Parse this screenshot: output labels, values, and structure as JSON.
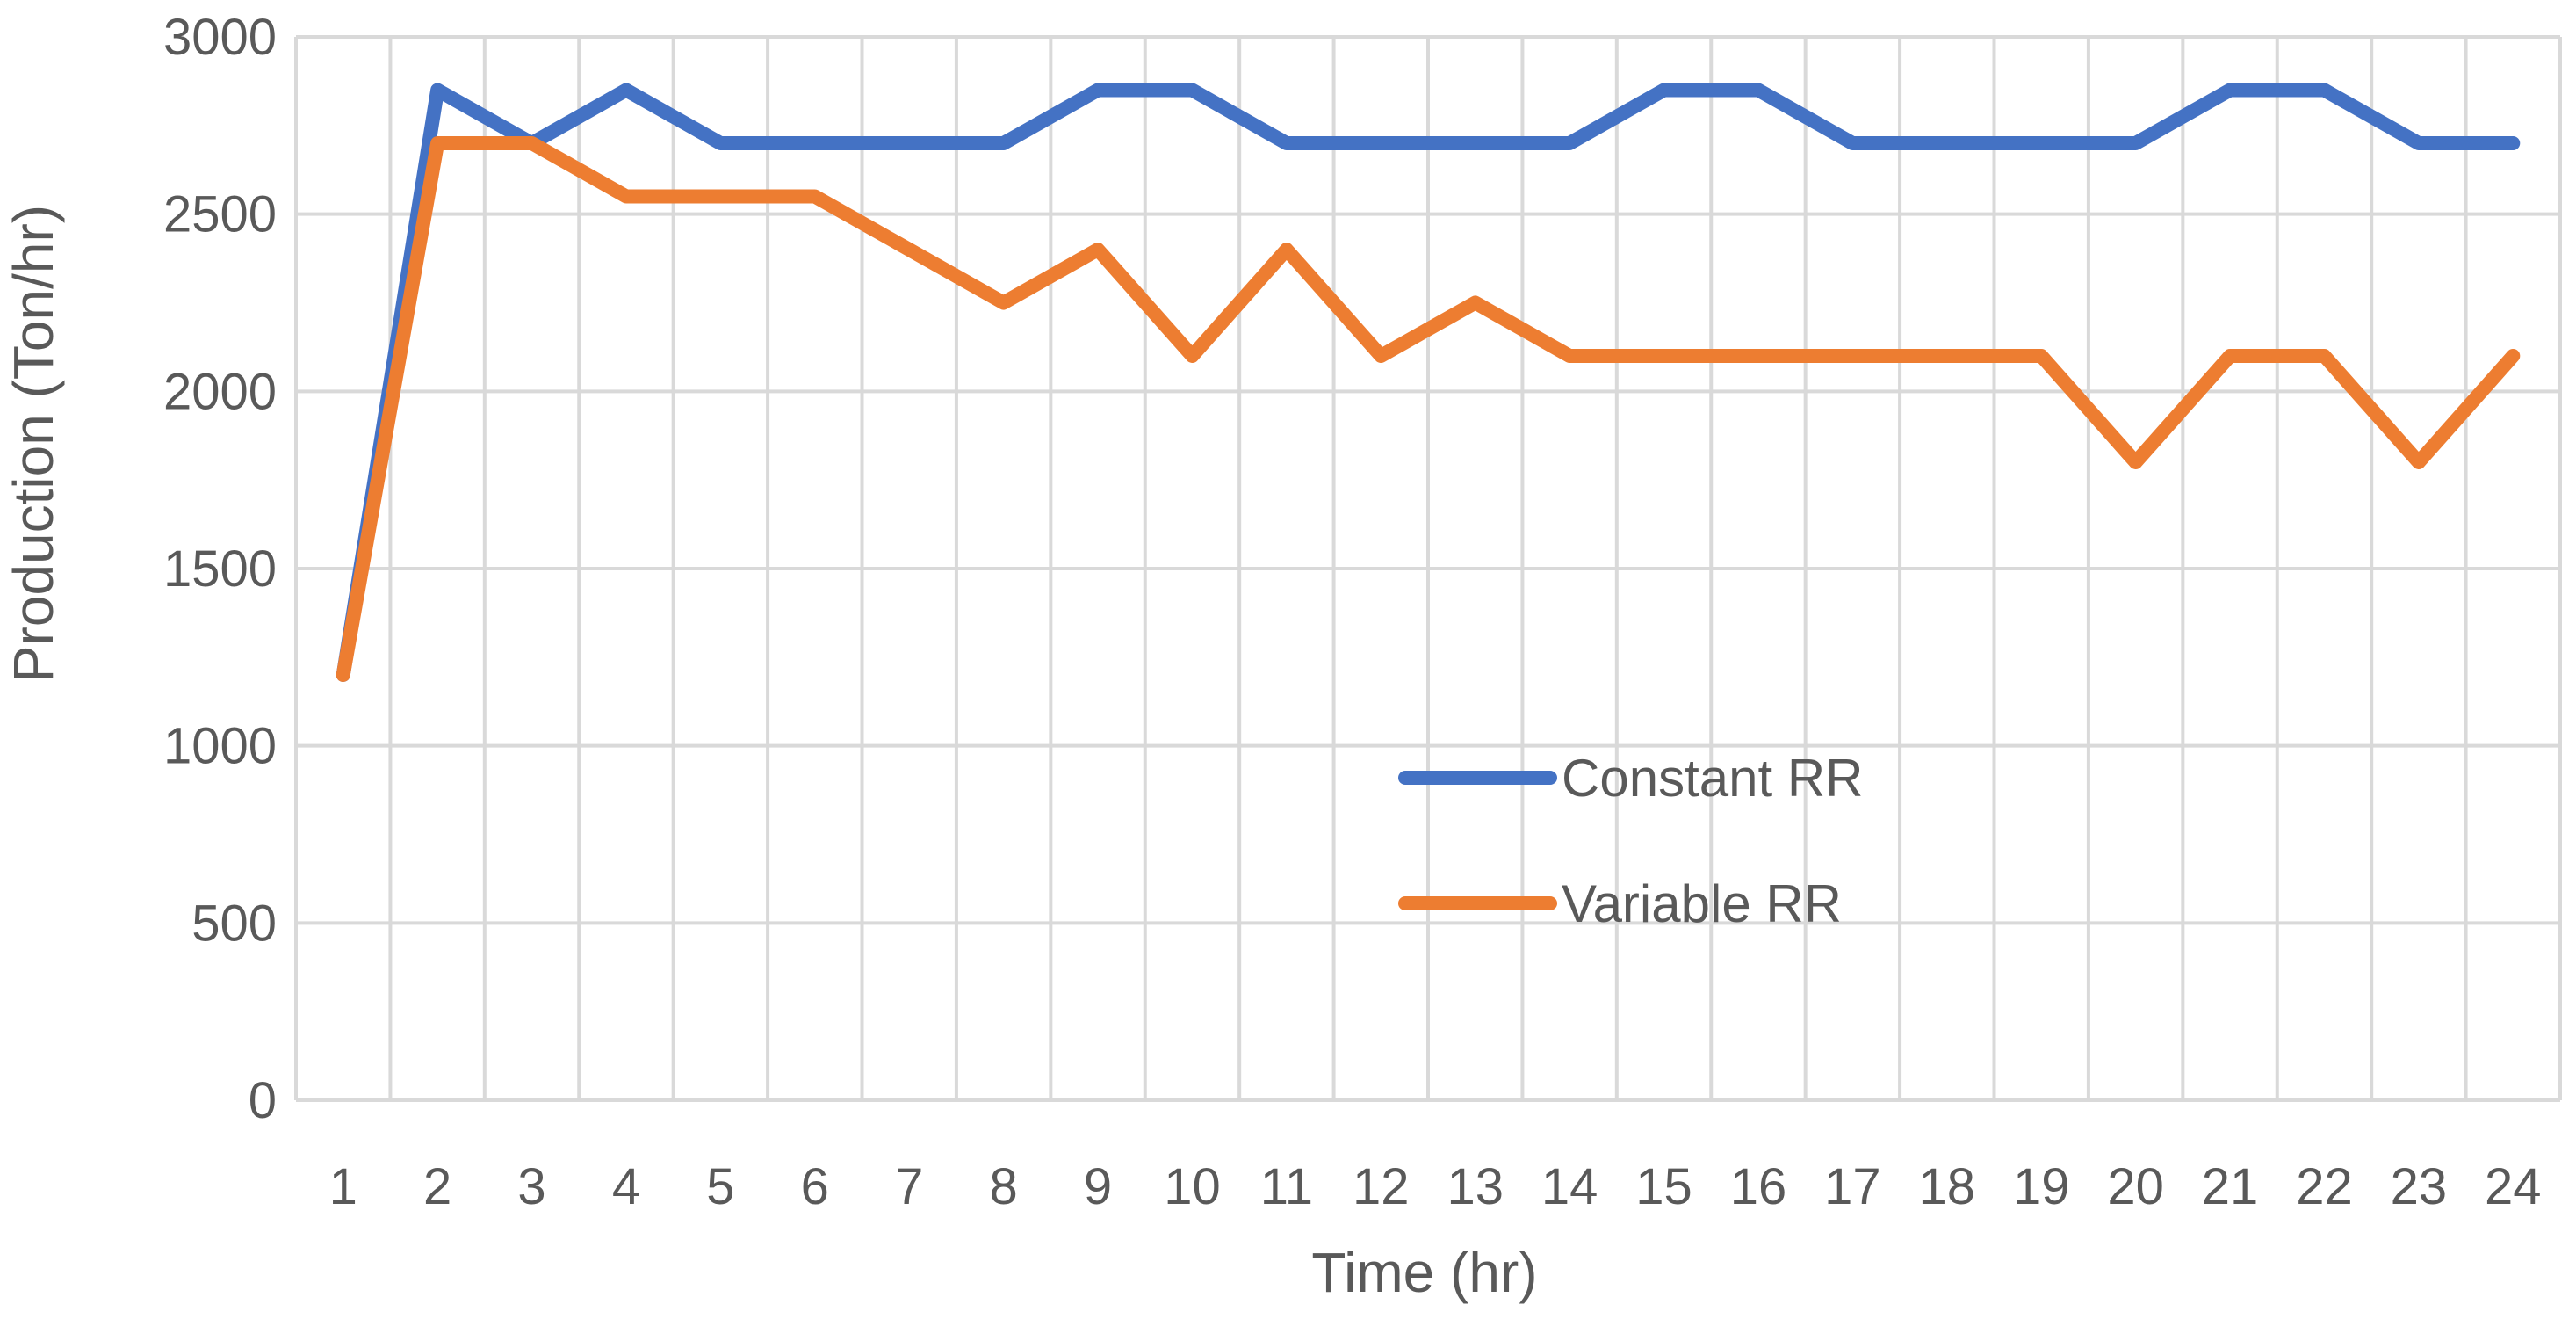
{
  "chart_data": {
    "type": "line",
    "title": "",
    "xlabel": "Time (hr)",
    "ylabel": "Production (Ton/hr)",
    "categories": [
      "1",
      "2",
      "3",
      "4",
      "5",
      "6",
      "7",
      "8",
      "9",
      "10",
      "11",
      "12",
      "13",
      "14",
      "15",
      "16",
      "17",
      "18",
      "19",
      "20",
      "21",
      "22",
      "23",
      "24"
    ],
    "ylim": [
      0,
      3000
    ],
    "yticks": [
      0,
      500,
      1000,
      1500,
      2000,
      2500,
      3000
    ],
    "ytick_labels": [
      "0",
      "500",
      "1000",
      "1500",
      "2000",
      "2500",
      "3000"
    ],
    "grid": true,
    "legend_position": "center-right",
    "series": [
      {
        "name": "Constant RR",
        "color": "#4472C4",
        "values": [
          1200,
          2850,
          2700,
          2850,
          2700,
          2700,
          2700,
          2700,
          2850,
          2850,
          2700,
          2700,
          2700,
          2700,
          2850,
          2850,
          2700,
          2700,
          2700,
          2700,
          2850,
          2850,
          2700,
          2700
        ]
      },
      {
        "name": "Variable RR",
        "color": "#ED7D31",
        "values": [
          1200,
          2700,
          2700,
          2550,
          2550,
          2550,
          2400,
          2250,
          2400,
          2100,
          2400,
          2100,
          2250,
          2100,
          2100,
          2100,
          2100,
          2100,
          2100,
          1800,
          2100,
          2100,
          1800,
          2100
        ]
      }
    ]
  }
}
